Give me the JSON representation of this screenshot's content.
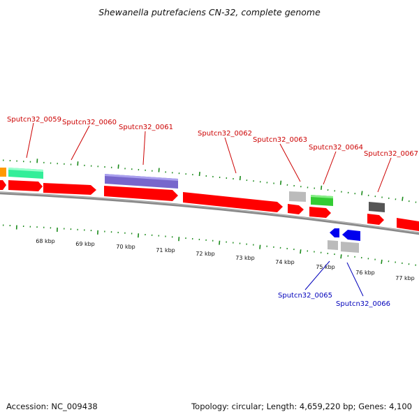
{
  "title": "Shewanella putrefaciens CN-32, complete genome",
  "footer": {
    "accession": "Accession: NC_009438",
    "summary": "Topology: circular; Length: 4,659,220 bp; Genes: 4,100"
  },
  "colors": {
    "background": "#ffffff",
    "backbone": "#808080",
    "tick": "#1a8a1a",
    "forward_label": "#cc0000",
    "reverse_label": "#0000bb",
    "gene_red": "#ff0000",
    "gene_teal": "#33ee99",
    "gene_purple": "#7766cc",
    "gene_green": "#33cc33",
    "gene_gray": "#bbbbbb",
    "gene_darkgray": "#555555",
    "gene_blue": "#0000ee",
    "gene_orange": "#ff9900"
  },
  "scale_labels": [
    "68 kbp",
    "69 kbp",
    "70 kbp",
    "71 kbp",
    "72 kbp",
    "73 kbp",
    "74 kbp",
    "75 kbp",
    "76 kbp",
    "77 kbp"
  ],
  "forward_labels": [
    "Sputcn32_0059",
    "Sputcn32_0060",
    "Sputcn32_0061",
    "Sputcn32_0062",
    "Sputcn32_0063",
    "Sputcn32_0064",
    "Sputcn32_0067"
  ],
  "reverse_labels": [
    "Sputcn32_0065",
    "Sputcn32_0066"
  ]
}
